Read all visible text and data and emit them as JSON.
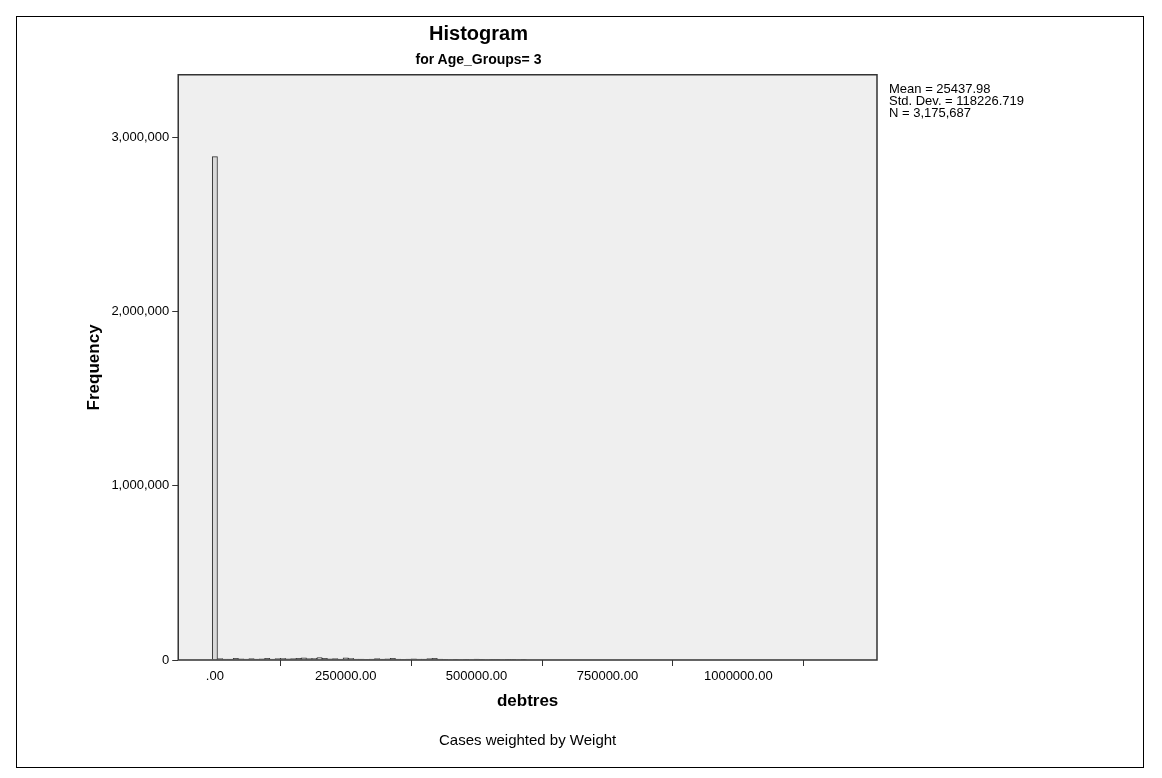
{
  "chart_data": {
    "type": "histogram",
    "title": "Histogram",
    "subtitle": "for Age_Groups= 3",
    "xlabel": "debtres",
    "ylabel": "Frequency",
    "annotations": [
      "Mean = 25437.98\nStd. Dev. = 118226.719\nN = 3,175,687",
      "Cases weighted by Weight"
    ],
    "bins": [
      -5000,
      5000,
      15000,
      25000,
      35000,
      45000,
      55000,
      65000,
      75000,
      85000,
      95000,
      105000,
      115000,
      125000,
      135000,
      145000,
      155000,
      165000,
      175000,
      185000,
      195000,
      205000,
      215000,
      225000,
      235000,
      245000,
      255000,
      265000,
      275000,
      285000,
      295000,
      305000,
      315000,
      325000,
      335000,
      345000,
      355000,
      365000,
      375000,
      385000,
      395000,
      405000,
      415000,
      425000,
      435000,
      445000,
      455000,
      465000,
      475000,
      485000,
      495000,
      505000,
      515000,
      525000,
      535000,
      545000,
      555000,
      565000,
      575000,
      585000,
      595000
    ],
    "values": [
      2890000,
      8000,
      6000,
      5000,
      9000,
      7000,
      6000,
      8000,
      5000,
      7000,
      9000,
      6000,
      8000,
      10000,
      7000,
      8000,
      9000,
      12000,
      8000,
      10000,
      14000,
      9000,
      7000,
      8000,
      6000,
      12000,
      10000,
      6000,
      5000,
      4000,
      6000,
      8000,
      5000,
      7000,
      9000,
      6000,
      4000,
      5000,
      7000,
      6000,
      5000,
      8000,
      9000,
      6000,
      4000,
      3000,
      2000,
      3000,
      4000,
      3000,
      5000,
      4000,
      3000,
      2000,
      2000,
      3000,
      2000,
      4000,
      3000,
      2000
    ],
    "color": "#d9d9d9",
    "xlim": [
      -70000,
      1265000
    ],
    "ylim": [
      0,
      3360000
    ],
    "xticks": [
      {
        "value": 0,
        "label": ".00"
      },
      {
        "value": 250000,
        "label": "250000.00"
      },
      {
        "value": 500000,
        "label": "500000.00"
      },
      {
        "value": 750000,
        "label": "750000.00"
      },
      {
        "value": 1000000,
        "label": "1000000.00"
      }
    ],
    "yticks": [
      0,
      {
        "value": 1000000,
        "label": "1,000,000"
      },
      {
        "value": 2000000,
        "label": "2,000,000"
      },
      {
        "value": 3000000,
        "label": "3,000,000"
      }
    ]
  }
}
